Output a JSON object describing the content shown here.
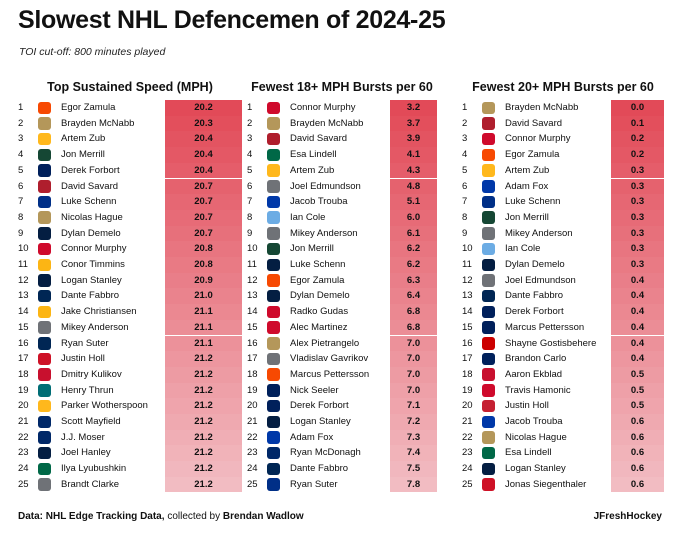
{
  "title": "Slowest NHL Defencemen of 2024-25",
  "subtitle": "TOI cut-off: 800 minutes played",
  "footer": {
    "source_prefix": "Data: NHL Edge Tracking Data,",
    "collected_by": "collected by",
    "author": "Brendan Wadlow",
    "brand": "JFreshHockey"
  },
  "colors": {
    "scale_low": "#f2bcc2",
    "scale_high": "#e24a58"
  },
  "team_colors": {
    "PHI": "#F74902",
    "VGK": "#B4975A",
    "NSH": "#FFB81C",
    "MIN": "#154734",
    "VAN": "#00205B",
    "MTL": "#AF1E2D",
    "STL": "#002F87",
    "WPG": "#041E42",
    "CHI": "#CF0A2C",
    "PIT": "#FCB514",
    "CBJ": "#002654",
    "LAK": "#6F7277",
    "DET": "#CE1126",
    "FLA": "#C8102E",
    "SJS": "#006D75",
    "BOS": "#FFB81C",
    "TBL": "#002868",
    "NJD": "#CE1126",
    "DAL": "#006847",
    "NYR": "#0038A8",
    "UTA": "#6CACE4",
    "CAR": "#CC0000",
    "OTT": "#C52032"
  },
  "chart_data": [
    {
      "type": "table",
      "title": "Top Sustained Speed (MPH)",
      "rows": [
        {
          "rank": "1",
          "team": "PHI",
          "player": "Egor Zamula",
          "value": 20.2,
          "label": "20.2"
        },
        {
          "rank": "2",
          "team": "VGK",
          "player": "Brayden McNabb",
          "value": 20.3,
          "label": "20.3"
        },
        {
          "rank": "3",
          "team": "NSH",
          "player": "Artem Zub",
          "value": 20.4,
          "label": "20.4"
        },
        {
          "rank": "4",
          "team": "MIN",
          "player": "Jon Merrill",
          "value": 20.4,
          "label": "20.4"
        },
        {
          "rank": "5",
          "team": "VAN",
          "player": "Derek Forbort",
          "value": 20.4,
          "label": "20.4"
        },
        {
          "rank": "6",
          "team": "MTL",
          "player": "David Savard",
          "value": 20.7,
          "label": "20.7"
        },
        {
          "rank": "7",
          "team": "STL",
          "player": "Luke Schenn",
          "value": 20.7,
          "label": "20.7"
        },
        {
          "rank": "8",
          "team": "VGK",
          "player": "Nicolas Hague",
          "value": 20.7,
          "label": "20.7"
        },
        {
          "rank": "9",
          "team": "WPG",
          "player": "Dylan Demelo",
          "value": 20.7,
          "label": "20.7"
        },
        {
          "rank": "10",
          "team": "CHI",
          "player": "Connor Murphy",
          "value": 20.8,
          "label": "20.8"
        },
        {
          "rank": "11",
          "team": "PIT",
          "player": "Conor Timmins",
          "value": 20.8,
          "label": "20.8"
        },
        {
          "rank": "12",
          "team": "WPG",
          "player": "Logan Stanley",
          "value": 20.9,
          "label": "20.9"
        },
        {
          "rank": "13",
          "team": "CBJ",
          "player": "Dante Fabbro",
          "value": 21.0,
          "label": "21.0"
        },
        {
          "rank": "14",
          "team": "PIT",
          "player": "Jake Christiansen",
          "value": 21.1,
          "label": "21.1"
        },
        {
          "rank": "15",
          "team": "LAK",
          "player": "Mikey Anderson",
          "value": 21.1,
          "label": "21.1"
        },
        {
          "rank": "16",
          "team": "CBJ",
          "player": "Ryan Suter",
          "value": 21.1,
          "label": "21.1"
        },
        {
          "rank": "17",
          "team": "DET",
          "player": "Justin Holl",
          "value": 21.2,
          "label": "21.2"
        },
        {
          "rank": "18",
          "team": "FLA",
          "player": "Dmitry Kulikov",
          "value": 21.2,
          "label": "21.2"
        },
        {
          "rank": "19",
          "team": "SJS",
          "player": "Henry Thrun",
          "value": 21.2,
          "label": "21.2"
        },
        {
          "rank": "20",
          "team": "BOS",
          "player": "Parker Wotherspoon",
          "value": 21.2,
          "label": "21.2"
        },
        {
          "rank": "21",
          "team": "TBL",
          "player": "Scott Mayfield",
          "value": 21.2,
          "label": "21.2"
        },
        {
          "rank": "22",
          "team": "TBL",
          "player": "J.J. Moser",
          "value": 21.2,
          "label": "21.2"
        },
        {
          "rank": "23",
          "team": "WPG",
          "player": "Joel Hanley",
          "value": 21.2,
          "label": "21.2"
        },
        {
          "rank": "24",
          "team": "DAL",
          "player": "Ilya Lyubushkin",
          "value": 21.2,
          "label": "21.2"
        },
        {
          "rank": "25",
          "team": "LAK",
          "player": "Brandt Clarke",
          "value": 21.2,
          "label": "21.2"
        }
      ]
    },
    {
      "type": "table",
      "title": "Fewest 18+ MPH Bursts per 60",
      "rows": [
        {
          "rank": "1",
          "team": "CHI",
          "player": "Connor Murphy",
          "value": 3.2,
          "label": "3.2"
        },
        {
          "rank": "2",
          "team": "VGK",
          "player": "Brayden McNabb",
          "value": 3.7,
          "label": "3.7"
        },
        {
          "rank": "3",
          "team": "MTL",
          "player": "David Savard",
          "value": 3.9,
          "label": "3.9"
        },
        {
          "rank": "4",
          "team": "DAL",
          "player": "Esa Lindell",
          "value": 4.1,
          "label": "4.1"
        },
        {
          "rank": "5",
          "team": "NSH",
          "player": "Artem Zub",
          "value": 4.3,
          "label": "4.3"
        },
        {
          "rank": "6",
          "team": "LAK",
          "player": "Joel Edmundson",
          "value": 4.8,
          "label": "4.8"
        },
        {
          "rank": "7",
          "team": "NYR",
          "player": "Jacob Trouba",
          "value": 5.1,
          "label": "5.1"
        },
        {
          "rank": "8",
          "team": "UTA",
          "player": "Ian Cole",
          "value": 6.0,
          "label": "6.0"
        },
        {
          "rank": "9",
          "team": "LAK",
          "player": "Mikey Anderson",
          "value": 6.1,
          "label": "6.1"
        },
        {
          "rank": "10",
          "team": "MIN",
          "player": "Jon Merrill",
          "value": 6.2,
          "label": "6.2"
        },
        {
          "rank": "11",
          "team": "WPG",
          "player": "Luke Schenn",
          "value": 6.2,
          "label": "6.2"
        },
        {
          "rank": "12",
          "team": "PHI",
          "player": "Egor Zamula",
          "value": 6.3,
          "label": "6.3"
        },
        {
          "rank": "13",
          "team": "WPG",
          "player": "Dylan Demelo",
          "value": 6.4,
          "label": "6.4"
        },
        {
          "rank": "14",
          "team": "CHI",
          "player": "Radko Gudas",
          "value": 6.8,
          "label": "6.8"
        },
        {
          "rank": "15",
          "team": "CHI",
          "player": "Alec Martinez",
          "value": 6.8,
          "label": "6.8"
        },
        {
          "rank": "16",
          "team": "VGK",
          "player": "Alex Pietrangelo",
          "value": 7.0,
          "label": "7.0"
        },
        {
          "rank": "17",
          "team": "LAK",
          "player": "Vladislav Gavrikov",
          "value": 7.0,
          "label": "7.0"
        },
        {
          "rank": "18",
          "team": "PHI",
          "player": "Marcus Pettersson",
          "value": 7.0,
          "label": "7.0"
        },
        {
          "rank": "19",
          "team": "VAN",
          "player": "Nick Seeler",
          "value": 7.0,
          "label": "7.0"
        },
        {
          "rank": "20",
          "team": "VAN",
          "player": "Derek Forbort",
          "value": 7.1,
          "label": "7.1"
        },
        {
          "rank": "21",
          "team": "WPG",
          "player": "Logan Stanley",
          "value": 7.2,
          "label": "7.2"
        },
        {
          "rank": "22",
          "team": "NYR",
          "player": "Adam Fox",
          "value": 7.3,
          "label": "7.3"
        },
        {
          "rank": "23",
          "team": "TBL",
          "player": "Ryan McDonagh",
          "value": 7.4,
          "label": "7.4"
        },
        {
          "rank": "24",
          "team": "CBJ",
          "player": "Dante Fabbro",
          "value": 7.5,
          "label": "7.5"
        },
        {
          "rank": "25",
          "team": "STL",
          "player": "Ryan Suter",
          "value": 7.8,
          "label": "7.8"
        }
      ]
    },
    {
      "type": "table",
      "title": "Fewest 20+ MPH Bursts per 60",
      "rows": [
        {
          "rank": "1",
          "team": "VGK",
          "player": "Brayden McNabb",
          "value": 0.0,
          "label": "0.0"
        },
        {
          "rank": "2",
          "team": "MTL",
          "player": "David Savard",
          "value": 0.1,
          "label": "0.1"
        },
        {
          "rank": "3",
          "team": "CHI",
          "player": "Connor Murphy",
          "value": 0.2,
          "label": "0.2"
        },
        {
          "rank": "4",
          "team": "PHI",
          "player": "Egor Zamula",
          "value": 0.2,
          "label": "0.2"
        },
        {
          "rank": "5",
          "team": "NSH",
          "player": "Artem Zub",
          "value": 0.3,
          "label": "0.3"
        },
        {
          "rank": "6",
          "team": "NYR",
          "player": "Adam Fox",
          "value": 0.3,
          "label": "0.3"
        },
        {
          "rank": "7",
          "team": "STL",
          "player": "Luke Schenn",
          "value": 0.3,
          "label": "0.3"
        },
        {
          "rank": "8",
          "team": "MIN",
          "player": "Jon Merrill",
          "value": 0.3,
          "label": "0.3"
        },
        {
          "rank": "9",
          "team": "LAK",
          "player": "Mikey Anderson",
          "value": 0.3,
          "label": "0.3"
        },
        {
          "rank": "10",
          "team": "UTA",
          "player": "Ian Cole",
          "value": 0.3,
          "label": "0.3"
        },
        {
          "rank": "11",
          "team": "WPG",
          "player": "Dylan Demelo",
          "value": 0.3,
          "label": "0.3"
        },
        {
          "rank": "12",
          "team": "LAK",
          "player": "Joel Edmundson",
          "value": 0.4,
          "label": "0.4"
        },
        {
          "rank": "13",
          "team": "CBJ",
          "player": "Dante Fabbro",
          "value": 0.4,
          "label": "0.4"
        },
        {
          "rank": "14",
          "team": "VAN",
          "player": "Derek Forbort",
          "value": 0.4,
          "label": "0.4"
        },
        {
          "rank": "15",
          "team": "VAN",
          "player": "Marcus Pettersson",
          "value": 0.4,
          "label": "0.4"
        },
        {
          "rank": "16",
          "team": "CAR",
          "player": "Shayne Gostisbehere",
          "value": 0.4,
          "label": "0.4"
        },
        {
          "rank": "17",
          "team": "VAN",
          "player": "Brandon Carlo",
          "value": 0.4,
          "label": "0.4"
        },
        {
          "rank": "18",
          "team": "FLA",
          "player": "Aaron Ekblad",
          "value": 0.5,
          "label": "0.5"
        },
        {
          "rank": "19",
          "team": "CHI",
          "player": "Travis Hamonic",
          "value": 0.5,
          "label": "0.5"
        },
        {
          "rank": "20",
          "team": "OTT",
          "player": "Justin Holl",
          "value": 0.5,
          "label": "0.5"
        },
        {
          "rank": "21",
          "team": "NYR",
          "player": "Jacob Trouba",
          "value": 0.6,
          "label": "0.6"
        },
        {
          "rank": "22",
          "team": "VGK",
          "player": "Nicolas Hague",
          "value": 0.6,
          "label": "0.6"
        },
        {
          "rank": "23",
          "team": "DAL",
          "player": "Esa Lindell",
          "value": 0.6,
          "label": "0.6"
        },
        {
          "rank": "24",
          "team": "WPG",
          "player": "Logan Stanley",
          "value": 0.6,
          "label": "0.6"
        },
        {
          "rank": "25",
          "team": "NJD",
          "player": "Jonas Siegenthaler",
          "value": 0.6,
          "label": "0.6"
        }
      ]
    }
  ]
}
